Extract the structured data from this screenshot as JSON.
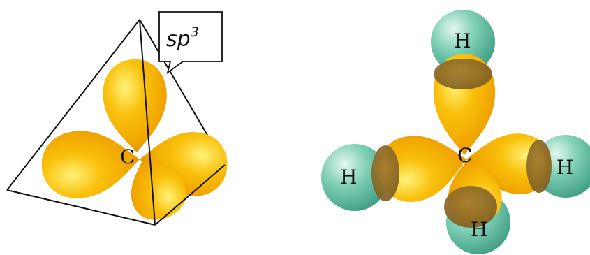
{
  "left_diagram": {
    "hybrid_label": {
      "main": "sp",
      "sup": "3"
    },
    "center_atom": "C"
  },
  "right_diagram": {
    "center_atom": "C",
    "h_top": "H",
    "h_left": "H",
    "h_right": "H",
    "h_bottom": "H"
  },
  "colors": {
    "orbital": "#f7b400",
    "orbital_highlight": "#fff27a",
    "orbital_shadow": "#d98a00",
    "hydrogen": "#6fc4aa",
    "hydrogen_highlight": "#d6f2e8",
    "overlap": "#8a6a2a",
    "outline": "#111111"
  }
}
